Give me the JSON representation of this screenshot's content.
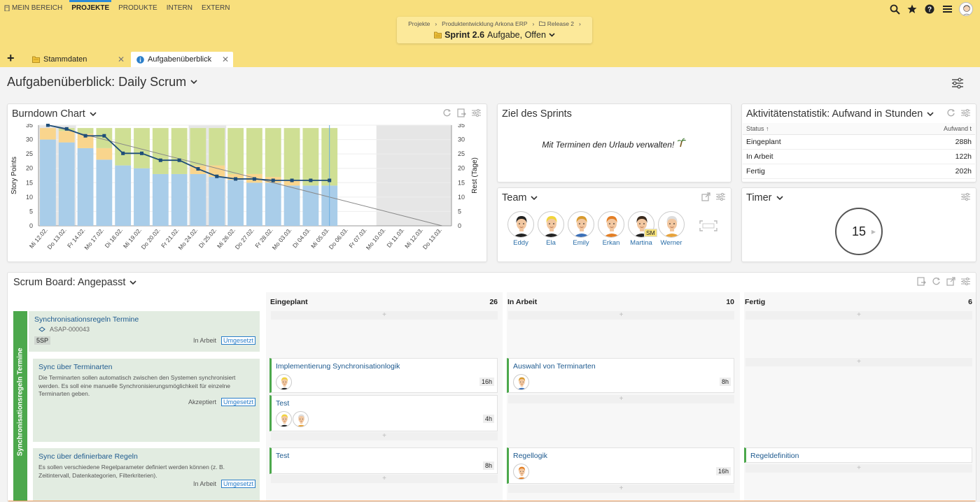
{
  "nav": {
    "items": [
      {
        "label": "MEIN BEREICH",
        "icon": "building-icon"
      },
      {
        "label": "PROJEKTE",
        "active": true
      },
      {
        "label": "PRODUKTE"
      },
      {
        "label": "INTERN"
      },
      {
        "label": "EXTERN"
      }
    ]
  },
  "topbar_icons": [
    "search-icon",
    "star-icon",
    "help-icon",
    "menu-icon",
    "user-avatar"
  ],
  "breadcrumb": {
    "items": [
      "Projekte",
      "Produktentwicklung Arkona ERP",
      "Release 2"
    ],
    "current_name": "Sprint 2.6",
    "current_meta": "Aufgabe, Offen"
  },
  "tabs": [
    {
      "label": "Stammdaten",
      "icon": "folder-icon"
    },
    {
      "label": "Aufgabenüberblick",
      "icon": "info-icon",
      "active": true
    }
  ],
  "page": {
    "title": "Aufgabenüberblick: Daily Scrum"
  },
  "burndown": {
    "title": "Burndown Chart"
  },
  "chart_data": {
    "type": "bar",
    "categories": [
      "Mi 12.02.",
      "Do 13.02.",
      "Fr 14.02.",
      "Mo 17.02.",
      "Di 18.02.",
      "Mi 19.02.",
      "Do 20.02.",
      "Fr 21.02.",
      "Mo 24.02.",
      "Di 25.02.",
      "Mi 26.02.",
      "Do 27.02.",
      "Fr 28.02.",
      "Mo 03.03.",
      "Di 04.03.",
      "Mi 05.03.",
      "Do 06.03.",
      "Fr 07.03.",
      "Mo 10.03.",
      "Di 11.03.",
      "Mi 12.03.",
      "Do 13.03."
    ],
    "series": [
      {
        "color": "#a9cde9",
        "values": [
          30,
          29,
          27,
          23,
          21,
          20,
          18,
          18,
          18,
          17,
          16,
          15,
          15,
          14,
          14,
          14,
          null,
          null,
          null,
          null,
          null,
          null
        ]
      },
      {
        "color": "#f9d58d",
        "values": [
          4,
          4,
          5,
          4,
          0,
          0,
          0,
          0,
          3,
          4,
          2,
          3,
          2,
          2,
          0,
          0,
          null,
          null,
          null,
          null,
          null,
          null
        ]
      },
      {
        "color": "#cfdf94",
        "values": [
          0,
          1,
          2,
          7,
          13,
          14,
          16,
          16,
          13,
          13,
          16,
          16,
          17,
          18,
          20,
          20,
          null,
          null,
          null,
          null,
          null,
          null
        ]
      }
    ],
    "line": [
      35,
      33.7,
      31.3,
      31.3,
      25.2,
      25.2,
      22.8,
      22.8,
      19.8,
      17.2,
      16.3,
      16.3,
      15.8,
      15.8,
      15.8,
      15.8,
      null,
      null,
      null,
      null,
      null,
      null
    ],
    "ideal": {
      "from": 35,
      "to": 0
    },
    "ylabel": "Story Points",
    "y2label": "Rest (Tage)",
    "ylim": [
      0,
      35
    ],
    "y2lim": [
      0,
      35
    ],
    "yticks": [
      0,
      5,
      10,
      15,
      20,
      25,
      30,
      35
    ],
    "y2ticks": [
      0,
      5,
      10,
      15,
      20,
      25,
      30,
      35
    ],
    "today_index": 15,
    "weekend_shade": [
      [
        0,
        1
      ],
      [
        8,
        9
      ],
      [
        18,
        21
      ]
    ]
  },
  "goal": {
    "title": "Ziel des Sprints",
    "text": "Mit Terminen den Urlaub verwalten!"
  },
  "stats": {
    "title": "Aktivitätenstatistik: Aufwand in Stunden",
    "col_status": "Status",
    "col_effort": "Aufwand t",
    "rows": [
      {
        "status": "Eingeplant",
        "value": "288h"
      },
      {
        "status": "In Arbeit",
        "value": "122h"
      },
      {
        "status": "Fertig",
        "value": "202h"
      }
    ]
  },
  "team": {
    "title": "Team",
    "members": [
      {
        "name": "Eddy",
        "hair": "#222",
        "skin": "#f2c7a0",
        "shirt": "#222"
      },
      {
        "name": "Ela",
        "hair": "#f1d43a",
        "skin": "#f2c7a0",
        "shirt": "#222"
      },
      {
        "name": "Emily",
        "hair": "#d79a2d",
        "skin": "#f2c7a0",
        "shirt": "#3b6fb7"
      },
      {
        "name": "Erkan",
        "hair": "#e37e24",
        "skin": "#f2c7a0",
        "shirt": "#e37e24"
      },
      {
        "name": "Martina",
        "hair": "#3a2a1d",
        "skin": "#f2c7a0",
        "shirt": "#222",
        "badge": "SM"
      },
      {
        "name": "Werner",
        "hair": "#ddd",
        "skin": "#f2c7a0",
        "shirt": "#e7a23a"
      }
    ]
  },
  "timer": {
    "title": "Timer",
    "value": "15"
  },
  "board": {
    "title": "Scrum Board: Angepasst",
    "swimlane": "Synchronisationsregeln Termine",
    "columns": [
      {
        "name": "Eingeplant",
        "count": "26"
      },
      {
        "name": "In Arbeit",
        "count": "10"
      },
      {
        "name": "Fertig",
        "count": "6"
      }
    ],
    "stories": [
      {
        "title": "Synchronisationsregeln Termine",
        "id": "ASAP-000043",
        "sp": "5SP",
        "status": "In Arbeit",
        "action": "Umgesetzt"
      },
      {
        "title": "Sync über Terminarten",
        "desc": "Die Terminarten sollen automatisch zwischen den Systemen synchronisiert werden. Es soll eine manuelle Synchronisierungsmöglichkeit für einzelne Terminarten geben.",
        "status": "Akzeptiert",
        "action": "Umgesetzt"
      },
      {
        "title": "Sync über definierbare Regeln",
        "desc": "Es sollen verschiedene Regelparameter definiert werden können (z. B. Zeitintervall, Datenkategorien, Filterkriterien).",
        "status": "In Arbeit",
        "action": "Umgesetzt"
      }
    ],
    "tasks": {
      "t1": {
        "title": "Implementierung Synchronisationlogik",
        "hours": "16h"
      },
      "t2": {
        "title": "Test",
        "hours": "4h"
      },
      "t3": {
        "title": "Auswahl von Terminarten",
        "hours": "8h"
      },
      "t4": {
        "title": "Test",
        "hours": "8h"
      },
      "t5": {
        "title": "Regellogik",
        "hours": "16h"
      },
      "t6": {
        "title": "Regeldefinition"
      }
    }
  }
}
